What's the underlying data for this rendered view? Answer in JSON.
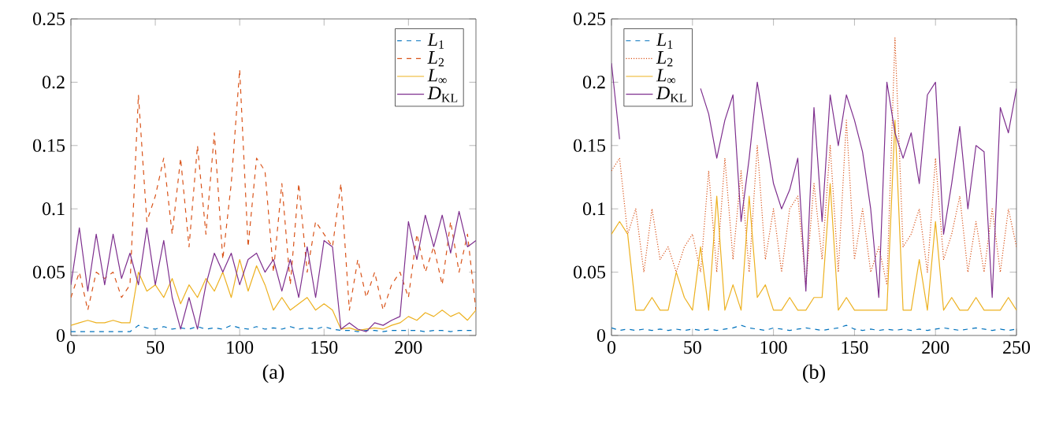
{
  "chart_data": [
    {
      "type": "line",
      "xlabel": "(a)",
      "legend": "top right",
      "xlim": [
        0,
        240
      ],
      "xticks": [
        0,
        50,
        100,
        150,
        200
      ],
      "ylim": [
        0,
        0.25
      ],
      "yticks": [
        0,
        0.05,
        0.1,
        0.15,
        0.2,
        0.25
      ],
      "x": [
        0,
        5,
        10,
        15,
        20,
        25,
        30,
        35,
        40,
        45,
        50,
        55,
        60,
        65,
        70,
        75,
        80,
        85,
        90,
        95,
        100,
        105,
        110,
        115,
        120,
        125,
        130,
        135,
        140,
        145,
        150,
        155,
        160,
        165,
        170,
        175,
        180,
        185,
        190,
        195,
        200,
        205,
        210,
        215,
        220,
        225,
        230,
        235,
        240
      ],
      "series": [
        {
          "name": "*L*$_{1}$",
          "color": "#0072bd",
          "line_style": "dashed",
          "values": [
            0.003,
            0.003,
            0.003,
            0.003,
            0.003,
            0.003,
            0.003,
            0.003,
            0.008,
            0.006,
            0.005,
            0.007,
            0.005,
            0.006,
            0.005,
            0.007,
            0.005,
            0.006,
            0.005,
            0.008,
            0.006,
            0.005,
            0.007,
            0.005,
            0.006,
            0.005,
            0.007,
            0.005,
            0.006,
            0.005,
            0.007,
            0.005,
            0.004,
            0.004,
            0.003,
            0.004,
            0.004,
            0.003,
            0.004,
            0.004,
            0.004,
            0.004,
            0.003,
            0.004,
            0.004,
            0.003,
            0.004,
            0.004,
            0.004
          ]
        },
        {
          "name": "*L*$_{2}$",
          "color": "#d95319",
          "line_style": "dashed",
          "values": [
            0.03,
            0.05,
            0.02,
            0.05,
            0.045,
            0.05,
            0.03,
            0.04,
            0.19,
            0.09,
            0.11,
            0.14,
            0.08,
            0.14,
            0.07,
            0.15,
            0.08,
            0.16,
            0.06,
            0.12,
            0.21,
            0.07,
            0.14,
            0.13,
            0.05,
            0.12,
            0.04,
            0.12,
            0.05,
            0.09,
            0.08,
            0.07,
            0.12,
            0.02,
            0.06,
            0.03,
            0.05,
            0.02,
            0.04,
            0.05,
            0.03,
            0.08,
            0.05,
            0.07,
            0.04,
            0.09,
            0.05,
            0.08,
            0.02
          ]
        },
        {
          "name": "*L*$_{∞}$",
          "color": "#edb120",
          "line_style": "solid",
          "values": [
            0.008,
            0.01,
            0.012,
            0.01,
            0.01,
            0.012,
            0.01,
            0.01,
            0.05,
            0.035,
            0.04,
            0.03,
            0.045,
            0.025,
            0.04,
            0.03,
            0.045,
            0.035,
            0.05,
            0.03,
            0.06,
            0.035,
            0.055,
            0.04,
            0.02,
            0.03,
            0.02,
            0.025,
            0.03,
            0.02,
            0.025,
            0.02,
            0.005,
            0.006,
            0.004,
            0.005,
            0.006,
            0.005,
            0.008,
            0.01,
            0.015,
            0.012,
            0.018,
            0.015,
            0.02,
            0.015,
            0.018,
            0.012,
            0.02
          ]
        },
        {
          "name": "*D*$_{KL}$",
          "color": "#7e2f8e",
          "line_style": "solid",
          "values": [
            0.04,
            0.085,
            0.035,
            0.08,
            0.04,
            0.08,
            0.045,
            0.065,
            0.04,
            0.085,
            0.04,
            0.075,
            0.03,
            0.005,
            0.03,
            0.005,
            0.04,
            0.065,
            0.05,
            0.065,
            0.04,
            0.06,
            0.065,
            0.05,
            0.06,
            0.035,
            0.06,
            0.03,
            0.07,
            0.03,
            0.075,
            0.07,
            0.005,
            0.01,
            0.005,
            0.003,
            0.01,
            0.008,
            0.012,
            0.015,
            0.09,
            0.06,
            0.095,
            0.07,
            0.095,
            0.065,
            0.098,
            0.07,
            0.075
          ]
        }
      ]
    },
    {
      "type": "line",
      "xlabel": "(b)",
      "legend": "top left",
      "xlim": [
        0,
        250
      ],
      "xticks": [
        0,
        50,
        100,
        150,
        200,
        250
      ],
      "ylim": [
        0,
        0.25
      ],
      "yticks": [
        0,
        0.05,
        0.1,
        0.15,
        0.2,
        0.25
      ],
      "x": [
        0,
        5,
        10,
        15,
        20,
        25,
        30,
        35,
        40,
        45,
        50,
        55,
        60,
        65,
        70,
        75,
        80,
        85,
        90,
        95,
        100,
        105,
        110,
        115,
        120,
        125,
        130,
        135,
        140,
        145,
        150,
        155,
        160,
        165,
        170,
        175,
        180,
        185,
        190,
        195,
        200,
        205,
        210,
        215,
        220,
        225,
        230,
        235,
        240,
        245,
        250
      ],
      "series": [
        {
          "name": "*L*$_{1}$",
          "color": "#0072bd",
          "line_style": "dashed",
          "values": [
            0.006,
            0.004,
            0.005,
            0.004,
            0.005,
            0.004,
            0.005,
            0.004,
            0.005,
            0.004,
            0.005,
            0.004,
            0.005,
            0.004,
            0.005,
            0.006,
            0.008,
            0.006,
            0.005,
            0.004,
            0.006,
            0.005,
            0.004,
            0.005,
            0.006,
            0.005,
            0.004,
            0.005,
            0.006,
            0.008,
            0.005,
            0.004,
            0.005,
            0.004,
            0.005,
            0.004,
            0.005,
            0.004,
            0.005,
            0.004,
            0.005,
            0.006,
            0.005,
            0.004,
            0.005,
            0.006,
            0.005,
            0.004,
            0.005,
            0.004,
            0.005
          ]
        },
        {
          "name": "*L*$_{2}$",
          "color": "#d95319",
          "line_style": "dotted",
          "values": [
            0.13,
            0.14,
            0.08,
            0.1,
            0.05,
            0.1,
            0.06,
            0.07,
            0.05,
            0.07,
            0.08,
            0.05,
            0.13,
            0.05,
            0.14,
            0.06,
            0.13,
            0.05,
            0.15,
            0.06,
            0.1,
            0.05,
            0.1,
            0.11,
            0.04,
            0.12,
            0.06,
            0.15,
            0.05,
            0.17,
            0.06,
            0.1,
            0.05,
            0.07,
            0.04,
            0.235,
            0.07,
            0.08,
            0.1,
            0.05,
            0.14,
            0.06,
            0.08,
            0.11,
            0.05,
            0.09,
            0.05,
            0.1,
            0.05,
            0.1,
            0.07
          ]
        },
        {
          "name": "*L*$_{∞}$",
          "color": "#edb120",
          "line_style": "solid",
          "values": [
            0.08,
            0.09,
            0.08,
            0.02,
            0.02,
            0.03,
            0.02,
            0.02,
            0.05,
            0.03,
            0.02,
            0.07,
            0.02,
            0.11,
            0.02,
            0.04,
            0.02,
            0.11,
            0.03,
            0.04,
            0.02,
            0.02,
            0.03,
            0.02,
            0.02,
            0.03,
            0.03,
            0.12,
            0.02,
            0.03,
            0.02,
            0.02,
            0.02,
            0.02,
            0.02,
            0.17,
            0.02,
            0.02,
            0.06,
            0.02,
            0.09,
            0.02,
            0.03,
            0.02,
            0.02,
            0.03,
            0.02,
            0.02,
            0.02,
            0.03,
            0.02
          ]
        },
        {
          "name": "*D*$_{KL}$",
          "color": "#7e2f8e",
          "line_style": "solid",
          "values": [
            0.215,
            0.155,
            null,
            null,
            null,
            null,
            null,
            null,
            null,
            null,
            null,
            0.195,
            0.175,
            0.14,
            0.17,
            0.19,
            0.09,
            0.14,
            0.2,
            0.16,
            0.12,
            0.1,
            0.115,
            0.14,
            0.035,
            0.18,
            0.09,
            0.19,
            0.15,
            0.19,
            0.17,
            0.145,
            0.1,
            0.03,
            0.2,
            0.16,
            0.14,
            0.16,
            0.12,
            0.19,
            0.2,
            0.08,
            0.12,
            0.165,
            0.1,
            0.15,
            0.145,
            0.03,
            0.18,
            0.16,
            0.195
          ]
        }
      ]
    }
  ]
}
